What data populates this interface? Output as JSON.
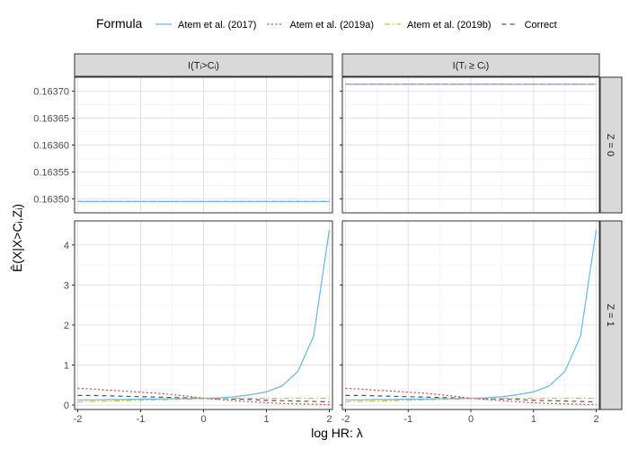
{
  "chart_data": {
    "type": "line",
    "legend": {
      "title": "Formula",
      "placement": "top",
      "entries": [
        {
          "label": "Atem et al. (2017)",
          "color": "#6FB6E0",
          "dash": "solid"
        },
        {
          "label": "Atem et al. (2019a)",
          "color": "#C84B4B",
          "dash": "dotted"
        },
        {
          "label": "Atem et al. (2019b)",
          "color": "#C9C43A",
          "dash": "dashdot"
        },
        {
          "label": "Correct",
          "color": "#555555",
          "dash": "dashed"
        }
      ]
    },
    "xlabel": "log HR: λ",
    "ylabel": "Ê(X|X>Cᵢ,Zᵢ)",
    "col_strips": [
      "I(Tᵢ>Cᵢ)",
      "I(Tᵢ ≥ Cᵢ)"
    ],
    "row_strips": [
      "Z = 0",
      "Z = 1"
    ],
    "x": [
      -2,
      -1.75,
      -1.5,
      -1.25,
      -1,
      -0.75,
      -0.5,
      -0.25,
      0,
      0.25,
      0.5,
      0.75,
      1,
      1.25,
      1.5,
      1.75,
      2
    ],
    "xlim": [
      -2.05,
      2.05
    ],
    "xticks": [
      -2,
      -1,
      0,
      1,
      2
    ],
    "grid": true,
    "panels": [
      {
        "row": 0,
        "col": 0,
        "ylim": [
          0.163474,
          0.163726
        ],
        "yticks": [
          0.1635,
          0.16355,
          0.1636,
          0.16365,
          0.1637
        ],
        "ytick_labels": [
          "0.16350",
          "0.16355",
          "0.16360",
          "0.16365",
          "0.16370"
        ],
        "series": [
          {
            "name": "Atem et al. (2017)",
            "values": [
              0.163495,
              0.163495,
              0.163495,
              0.163495,
              0.163495,
              0.163495,
              0.163495,
              0.163495,
              0.163495,
              0.163495,
              0.163495,
              0.163495,
              0.163495,
              0.163495,
              0.163495,
              0.163495,
              0.163495
            ]
          },
          {
            "name": "Atem et al. (2019a)",
            "values": [
              0.163495,
              0.163495,
              0.163495,
              0.163495,
              0.163495,
              0.163495,
              0.163495,
              0.163495,
              0.163495,
              0.163495,
              0.163495,
              0.163495,
              0.163495,
              0.163495,
              0.163495,
              0.163495,
              0.163495
            ]
          },
          {
            "name": "Atem et al. (2019b)",
            "values": [
              0.163495,
              0.163495,
              0.163495,
              0.163495,
              0.163495,
              0.163495,
              0.163495,
              0.163495,
              0.163495,
              0.163495,
              0.163495,
              0.163495,
              0.163495,
              0.163495,
              0.163495,
              0.163495,
              0.163495
            ]
          },
          {
            "name": "Correct",
            "values": [
              0.163495,
              0.163495,
              0.163495,
              0.163495,
              0.163495,
              0.163495,
              0.163495,
              0.163495,
              0.163495,
              0.163495,
              0.163495,
              0.163495,
              0.163495,
              0.163495,
              0.163495,
              0.163495,
              0.163495
            ]
          }
        ]
      },
      {
        "row": 0,
        "col": 1,
        "ylim": [
          0.163474,
          0.163726
        ],
        "yticks": [
          0.1635,
          0.16355,
          0.1636,
          0.16365,
          0.1637
        ],
        "ytick_labels": [],
        "series": [
          {
            "name": "Atem et al. (2017)",
            "values": [
              0.163713,
              0.163713,
              0.163713,
              0.163713,
              0.163713,
              0.163713,
              0.163713,
              0.163713,
              0.163713,
              0.163713,
              0.163713,
              0.163713,
              0.163713,
              0.163713,
              0.163713,
              0.163713,
              0.163713
            ]
          },
          {
            "name": "Atem et al. (2019a)",
            "values": [
              0.163713,
              0.163713,
              0.163713,
              0.163713,
              0.163713,
              0.163713,
              0.163713,
              0.163713,
              0.163713,
              0.163713,
              0.163713,
              0.163713,
              0.163713,
              0.163713,
              0.163713,
              0.163713,
              0.163713
            ]
          },
          {
            "name": "Atem et al. (2019b)",
            "values": [
              0.163713,
              0.163713,
              0.163713,
              0.163713,
              0.163713,
              0.163713,
              0.163713,
              0.163713,
              0.163713,
              0.163713,
              0.163713,
              0.163713,
              0.163713,
              0.163713,
              0.163713,
              0.163713,
              0.163713
            ]
          },
          {
            "name": "Correct",
            "values": [
              0.163713,
              0.163713,
              0.163713,
              0.163713,
              0.163713,
              0.163713,
              0.163713,
              0.163713,
              0.163713,
              0.163713,
              0.163713,
              0.163713,
              0.163713,
              0.163713,
              0.163713,
              0.163713,
              0.163713
            ]
          }
        ]
      },
      {
        "row": 1,
        "col": 0,
        "ylim": [
          -0.11,
          4.6
        ],
        "yticks": [
          0,
          1,
          2,
          3,
          4
        ],
        "ytick_labels": [
          "0",
          "1",
          "2",
          "3",
          "4"
        ],
        "series": [
          {
            "name": "Atem et al. (2017)",
            "values": [
              0.13,
              0.13,
              0.14,
              0.14,
              0.15,
              0.15,
              0.16,
              0.16,
              0.17,
              0.18,
              0.21,
              0.26,
              0.33,
              0.48,
              0.84,
              1.72,
              4.38
            ]
          },
          {
            "name": "Atem et al. (2019a)",
            "values": [
              0.42,
              0.4,
              0.37,
              0.35,
              0.32,
              0.3,
              0.26,
              0.22,
              0.17,
              0.14,
              0.11,
              0.08,
              0.06,
              0.04,
              0.03,
              0.02,
              0.01
            ]
          },
          {
            "name": "Atem et al. (2019b)",
            "values": [
              0.08,
              0.09,
              0.1,
              0.11,
              0.12,
              0.13,
              0.14,
              0.15,
              0.16,
              0.16,
              0.17,
              0.17,
              0.17,
              0.17,
              0.17,
              0.17,
              0.17
            ]
          },
          {
            "name": "Correct",
            "values": [
              0.24,
              0.24,
              0.23,
              0.22,
              0.21,
              0.2,
              0.19,
              0.18,
              0.17,
              0.16,
              0.15,
              0.14,
              0.12,
              0.11,
              0.1,
              0.09,
              0.08
            ]
          }
        ]
      },
      {
        "row": 1,
        "col": 1,
        "ylim": [
          -0.11,
          4.6
        ],
        "yticks": [
          0,
          1,
          2,
          3,
          4
        ],
        "ytick_labels": [],
        "series": [
          {
            "name": "Atem et al. (2017)",
            "values": [
              0.13,
              0.13,
              0.14,
              0.14,
              0.15,
              0.15,
              0.16,
              0.16,
              0.17,
              0.18,
              0.21,
              0.26,
              0.33,
              0.48,
              0.84,
              1.72,
              4.38
            ]
          },
          {
            "name": "Atem et al. (2019a)",
            "values": [
              0.42,
              0.4,
              0.37,
              0.35,
              0.32,
              0.3,
              0.26,
              0.22,
              0.17,
              0.14,
              0.11,
              0.08,
              0.06,
              0.04,
              0.03,
              0.02,
              0.01
            ]
          },
          {
            "name": "Atem et al. (2019b)",
            "values": [
              0.08,
              0.09,
              0.1,
              0.11,
              0.12,
              0.13,
              0.14,
              0.15,
              0.16,
              0.16,
              0.17,
              0.17,
              0.17,
              0.17,
              0.17,
              0.17,
              0.17
            ]
          },
          {
            "name": "Correct",
            "values": [
              0.24,
              0.24,
              0.23,
              0.22,
              0.21,
              0.2,
              0.19,
              0.18,
              0.17,
              0.16,
              0.15,
              0.14,
              0.12,
              0.11,
              0.1,
              0.09,
              0.08
            ]
          }
        ]
      }
    ]
  }
}
